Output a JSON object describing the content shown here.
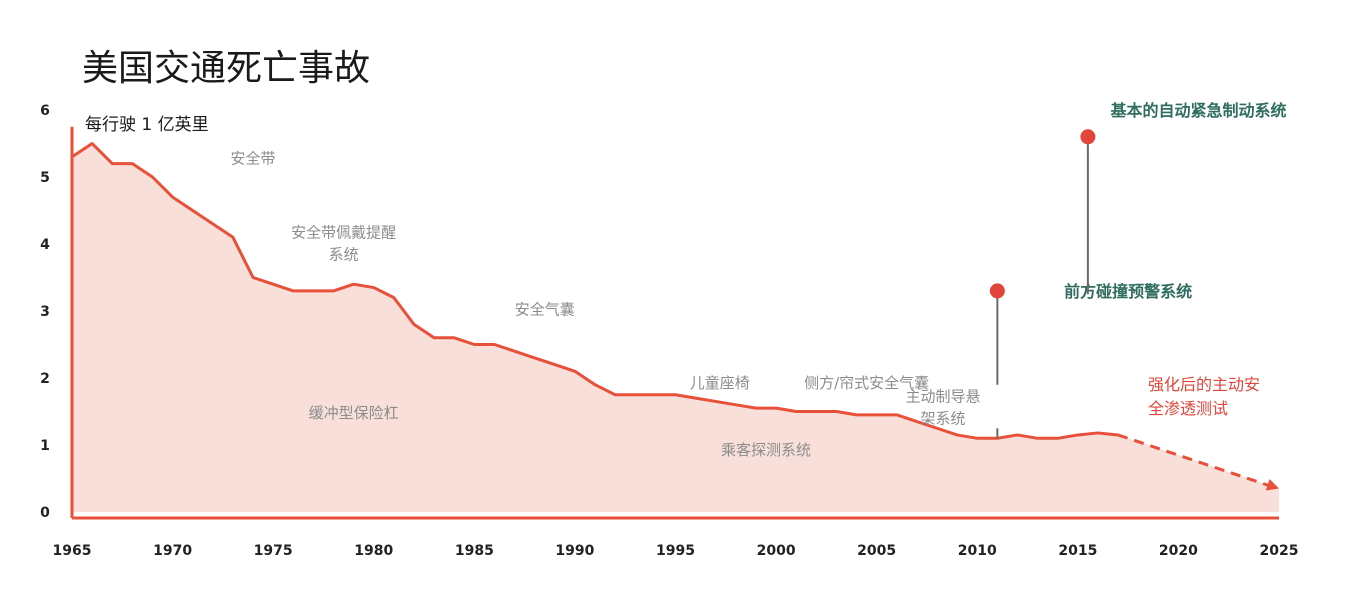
{
  "chart_data": {
    "type": "area",
    "title": "美国交通死亡事故",
    "ylabel": "每行驶 1 亿英里",
    "xlim": [
      1965,
      2025
    ],
    "ylim": [
      0,
      6
    ],
    "x_ticks": [
      "1965",
      "1970",
      "1975",
      "1980",
      "1985",
      "1990",
      "1995",
      "2000",
      "2005",
      "2010",
      "2015",
      "2020",
      "2025"
    ],
    "y_ticks": [
      "0",
      "1",
      "2",
      "3",
      "4",
      "5",
      "6"
    ],
    "series": [
      {
        "values": [
          [
            1965,
            5.3
          ],
          [
            1966,
            5.5
          ],
          [
            1967,
            5.2
          ],
          [
            1968,
            5.2
          ],
          [
            1969,
            5.0
          ],
          [
            1970,
            4.7
          ],
          [
            1971,
            4.5
          ],
          [
            1972,
            4.3
          ],
          [
            1973,
            4.1
          ],
          [
            1974,
            3.5
          ],
          [
            1975,
            3.4
          ],
          [
            1976,
            3.3
          ],
          [
            1977,
            3.3
          ],
          [
            1978,
            3.3
          ],
          [
            1979,
            3.4
          ],
          [
            1980,
            3.35
          ],
          [
            1981,
            3.2
          ],
          [
            1982,
            2.8
          ],
          [
            1983,
            2.6
          ],
          [
            1984,
            2.6
          ],
          [
            1985,
            2.5
          ],
          [
            1986,
            2.5
          ],
          [
            1987,
            2.4
          ],
          [
            1988,
            2.3
          ],
          [
            1989,
            2.2
          ],
          [
            1990,
            2.1
          ],
          [
            1991,
            1.9
          ],
          [
            1992,
            1.75
          ],
          [
            1993,
            1.75
          ],
          [
            1994,
            1.75
          ],
          [
            1995,
            1.75
          ],
          [
            1996,
            1.7
          ],
          [
            1997,
            1.65
          ],
          [
            1998,
            1.6
          ],
          [
            1999,
            1.55
          ],
          [
            2000,
            1.55
          ],
          [
            2001,
            1.5
          ],
          [
            2002,
            1.5
          ],
          [
            2003,
            1.5
          ],
          [
            2004,
            1.45
          ],
          [
            2005,
            1.45
          ],
          [
            2006,
            1.45
          ],
          [
            2007,
            1.35
          ],
          [
            2008,
            1.25
          ],
          [
            2009,
            1.15
          ],
          [
            2010,
            1.1
          ],
          [
            2011,
            1.1
          ],
          [
            2012,
            1.15
          ],
          [
            2013,
            1.1
          ],
          [
            2014,
            1.1
          ],
          [
            2015,
            1.15
          ],
          [
            2016,
            1.18
          ],
          [
            2017,
            1.15
          ]
        ]
      }
    ],
    "projection": {
      "from": [
        2017,
        1.15
      ],
      "to": [
        2025,
        0.35
      ]
    },
    "annotations": [
      {
        "text": "安全带",
        "x": 1974,
        "y": 5.2
      },
      {
        "lines": [
          "安全带佩戴提醒",
          "系统"
        ],
        "x": 1978.5,
        "y": 4.1
      },
      {
        "text": "缓冲型保险杠",
        "x": 1979,
        "y": 1.4
      },
      {
        "text": "安全气囊",
        "x": 1988.5,
        "y": 2.95
      },
      {
        "text": "儿童座椅",
        "x": 1997.2,
        "y": 1.85
      },
      {
        "text": "侧方/帘式安全气囊",
        "x": 2004.5,
        "y": 1.85
      },
      {
        "text": "乘客探测系统",
        "x": 1999.5,
        "y": 0.85
      },
      {
        "lines": [
          "主动制导悬",
          "架系统"
        ],
        "x": 2008.3,
        "y": 1.65
      }
    ],
    "markers": [
      {
        "label": "前方碰撞预警系统",
        "x": 2011,
        "y": 3.3,
        "line_to": 1.9,
        "label_x": 2017.5,
        "label_y": 3.3
      },
      {
        "label": "基本的自动紧急制动系统",
        "x": 2015.5,
        "y": 5.6,
        "line_to": 3.25,
        "label_x": 2021,
        "label_y": 6.0
      }
    ],
    "projection_label": [
      "强化后的主动安",
      "全渗透测试"
    ],
    "grid": false,
    "colors": {
      "line": "#e8503a",
      "fill": "#f8dfd9",
      "marker": "#e2463b",
      "marker_line": "#6b6b6b",
      "highlight_green": "#2f6d5e",
      "highlight_red": "#e2463b",
      "annotation": "#8c8c8c",
      "axis": "#e8503a"
    }
  }
}
